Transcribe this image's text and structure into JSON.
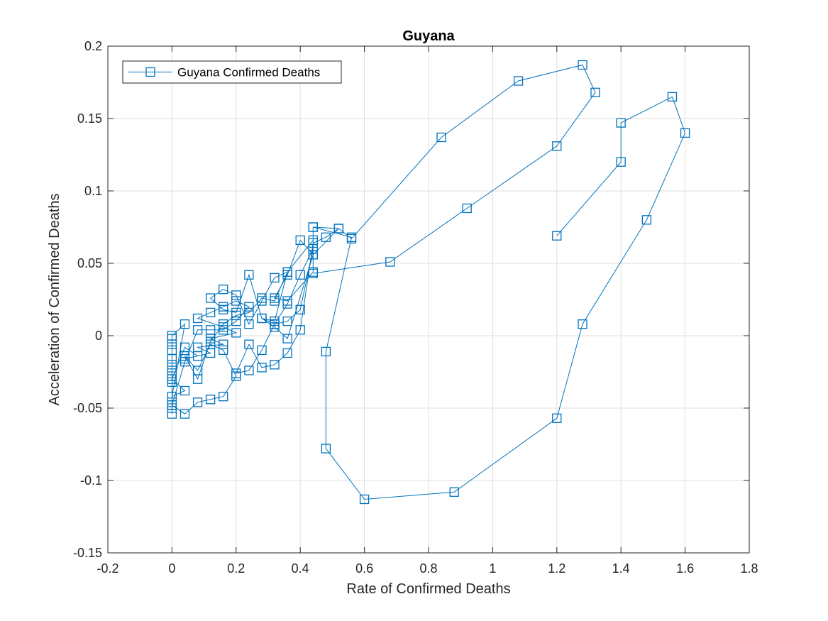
{
  "chart_data": {
    "type": "line",
    "title": "Guyana",
    "xlabel": "Rate of Confirmed Deaths",
    "ylabel": "Acceleration of Confirmed Deaths",
    "xlim": [
      -0.2,
      1.8
    ],
    "ylim": [
      -0.15,
      0.2
    ],
    "xticks": [
      -0.2,
      0,
      0.2,
      0.4,
      0.6,
      0.8,
      1,
      1.2,
      1.4,
      1.6,
      1.8
    ],
    "yticks": [
      -0.15,
      -0.1,
      -0.05,
      0,
      0.05,
      0.1,
      0.15,
      0.2
    ],
    "xtick_labels": [
      "-0.2",
      "0",
      "0.2",
      "0.4",
      "0.6",
      "0.8",
      "1",
      "1.2",
      "1.4",
      "1.6",
      "1.8"
    ],
    "ytick_labels": [
      "-0.15",
      "-0.1",
      "-0.05",
      "0",
      "0.05",
      "0.1",
      "0.15",
      "0.2"
    ],
    "grid": true,
    "legend_position": "top-left",
    "marker": "square",
    "color": "#0072BD",
    "series": [
      {
        "name": "Guyana Confirmed Deaths",
        "x": [
          0,
          0,
          0,
          0,
          0,
          0,
          0,
          0,
          0,
          0,
          0,
          0,
          0.04,
          0,
          0.04,
          0,
          0.04,
          0.08,
          0.04,
          0.12,
          0.08,
          0.16,
          0.12,
          0.2,
          0.16,
          0.08,
          0.12,
          0.16,
          0.2,
          0.24,
          0.2,
          0.16,
          0.12,
          0.08,
          0.04,
          0,
          0.04,
          0.08,
          0.12,
          0.16,
          0.2,
          0.16,
          0.12,
          0.08,
          0.04,
          0.08,
          0.12,
          0.16,
          0.2,
          0.24,
          0.28,
          0.32,
          0.36,
          0.32,
          0.28,
          0.24,
          0.2,
          0.16,
          0.12,
          0.16,
          0.2,
          0.24,
          0.28,
          0.32,
          0.36,
          0.4,
          0.44,
          0.4,
          0.36,
          0.32,
          0.28,
          0.24,
          0.2,
          0.24,
          0.28,
          0.32,
          0.36,
          0.4,
          0.44,
          0.48,
          0.52,
          0.44,
          0.4,
          0.36,
          0.32,
          0.36,
          0.44,
          0.44,
          0.36,
          0.32,
          0.28,
          0.32,
          0.36,
          0.44,
          0.44,
          0.56,
          0.48,
          0.48,
          0.6,
          0.88,
          1.2,
          1.28,
          1.48,
          1.6,
          1.56,
          1.4,
          1.4,
          1.2
        ],
        "y": [
          -0.054,
          -0.05,
          -0.046,
          -0.032,
          -0.028,
          -0.024,
          -0.02,
          -0.016,
          -0.01,
          -0.006,
          -0.002,
          0,
          0.008,
          -0.042,
          -0.038,
          -0.03,
          -0.008,
          -0.014,
          -0.016,
          -0.012,
          -0.008,
          -0.006,
          -0.002,
          0.002,
          0.006,
          0.012,
          0.016,
          0.02,
          0.024,
          0.02,
          0.01,
          0.004,
          0.004,
          0.004,
          -0.018,
          -0.048,
          -0.054,
          -0.046,
          -0.044,
          -0.042,
          -0.028,
          -0.01,
          -0.006,
          -0.024,
          -0.014,
          -0.03,
          -0.004,
          0.008,
          0.014,
          0.016,
          0.026,
          0.024,
          0.044,
          0.04,
          0.024,
          0.008,
          0.028,
          0.032,
          0.026,
          0.018,
          0.016,
          0.042,
          0.012,
          0.008,
          0.01,
          0.018,
          0.06,
          0.042,
          0.022,
          0.008,
          -0.01,
          -0.024,
          -0.026,
          -0.006,
          -0.022,
          -0.02,
          -0.012,
          0.004,
          0.064,
          0.068,
          0.074,
          0.056,
          0.066,
          0.042,
          0.026,
          0.024,
          0.044,
          0.066,
          0.044,
          0.01,
          0.012,
          0.006,
          -0.002,
          0.056,
          0.075,
          0.068,
          -0.011,
          -0.078,
          -0.113,
          -0.108,
          -0.057,
          0.008,
          0.08,
          0.14,
          0.165,
          0.147,
          0.12,
          0.069
        ]
      },
      {
        "name": "",
        "x": [
          0.44,
          0.68,
          0.92,
          1.2,
          1.32,
          1.28,
          1.08,
          0.84,
          0.56,
          0.52,
          0.44
        ],
        "y": [
          0.043,
          0.051,
          0.088,
          0.131,
          0.168,
          0.187,
          0.176,
          0.137,
          0.067,
          0.074,
          0.075
        ]
      }
    ],
    "legend": [
      "Guyana Confirmed Deaths"
    ]
  }
}
